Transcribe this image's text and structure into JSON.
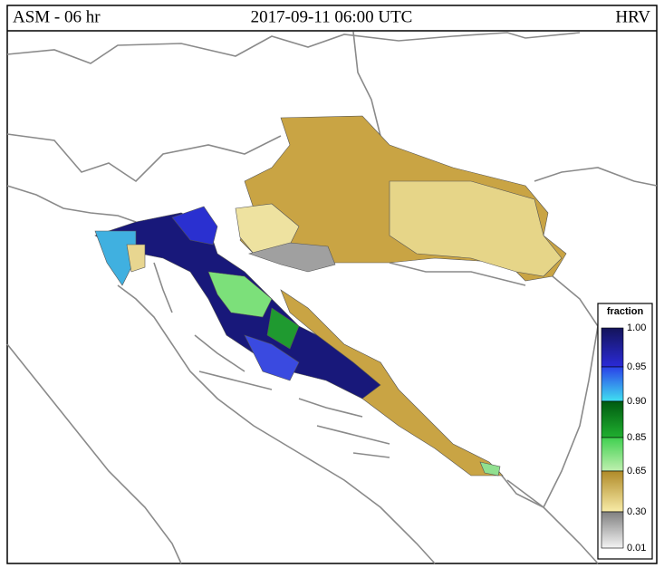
{
  "header": {
    "left": "ASM - 06 hr",
    "center": "2017-09-11 06:00 UTC",
    "right": "HRV"
  },
  "legend": {
    "title": "fraction",
    "labels": [
      "1.00",
      "0.95",
      "0.90",
      "0.85",
      "0.65",
      "0.30",
      "0.01"
    ]
  }
}
